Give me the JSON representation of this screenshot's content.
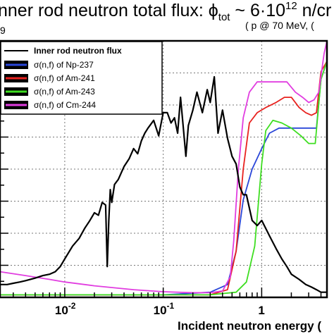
{
  "chart_data": {
    "type": "line",
    "title": "nner rod neutron total flux: ϕ",
    "title_sub": "tot",
    "title_tail": " ~ 6·10",
    "title_exp": "12",
    "title_unit": " n/cr",
    "subtitle": "( p @ 70 MeV, (",
    "y_exponent": "9",
    "xlabel": "Incident neutron energy (",
    "x_scale": "log",
    "xlim": [
      0.0022,
      4.6
    ],
    "ylim": [
      0,
      1
    ],
    "grid": true,
    "x_ticks": [
      {
        "value": 0.01,
        "label": "10",
        "exp": "-2"
      },
      {
        "value": 0.1,
        "label": "10",
        "exp": "-1"
      },
      {
        "value": 1,
        "label": "1",
        "exp": ""
      }
    ],
    "legend": {
      "placement": "top-left",
      "header": "Inner rod neutron flux",
      "entries": [
        {
          "label": "σ(n,f) of Np-237",
          "color": "#2a46d8"
        },
        {
          "label": "σ(n,f) of Am-241",
          "color": "#e8221f"
        },
        {
          "label": "σ(n,f) of Am-243",
          "color": "#3ede21"
        },
        {
          "label": "σ(n,f) of Cm-244",
          "color": "#e13de0"
        }
      ]
    },
    "series": [
      {
        "name": "Inner rod neutron flux",
        "color": "#000000",
        "x": [
          0.0022,
          0.0026,
          0.003,
          0.0035,
          0.004,
          0.005,
          0.006,
          0.007,
          0.008,
          0.009,
          0.01,
          0.012,
          0.014,
          0.016,
          0.018,
          0.02,
          0.022,
          0.024,
          0.026,
          0.027,
          0.028,
          0.029,
          0.03,
          0.032,
          0.035,
          0.04,
          0.045,
          0.05,
          0.055,
          0.06,
          0.065,
          0.07,
          0.08,
          0.09,
          0.1,
          0.11,
          0.12,
          0.13,
          0.14,
          0.15,
          0.16,
          0.17,
          0.18,
          0.2,
          0.22,
          0.25,
          0.28,
          0.3,
          0.33,
          0.36,
          0.4,
          0.45,
          0.5,
          0.55,
          0.6,
          0.65,
          0.7,
          0.8,
          0.9,
          1.0,
          1.2,
          1.4,
          1.6,
          1.8,
          2.0,
          2.4,
          2.8,
          3.2,
          3.6,
          4.0,
          4.6
        ],
        "y": [
          0.05,
          0.05,
          0.055,
          0.06,
          0.065,
          0.075,
          0.085,
          0.09,
          0.1,
          0.12,
          0.15,
          0.2,
          0.23,
          0.27,
          0.3,
          0.33,
          0.32,
          0.37,
          0.36,
          0.12,
          0.3,
          0.42,
          0.37,
          0.44,
          0.46,
          0.51,
          0.54,
          0.58,
          0.56,
          0.61,
          0.64,
          0.66,
          0.69,
          0.63,
          0.72,
          0.72,
          0.68,
          0.7,
          0.64,
          0.78,
          0.66,
          0.55,
          0.67,
          0.73,
          0.8,
          0.72,
          0.81,
          0.76,
          0.86,
          0.64,
          0.73,
          0.62,
          0.55,
          0.52,
          0.43,
          0.4,
          0.4,
          0.3,
          0.28,
          0.3,
          0.24,
          0.19,
          0.15,
          0.12,
          0.09,
          0.07,
          0.05,
          0.04,
          0.03,
          0.02,
          0.02
        ]
      },
      {
        "name": "σ(n,f) of Np-237",
        "color": "#2a46d8",
        "x": [
          0.0022,
          0.01,
          0.1,
          0.3,
          0.45,
          0.55,
          0.65,
          0.8,
          1.0,
          1.2,
          1.5,
          2.0,
          2.5,
          3.0,
          3.6,
          4.0,
          4.6
        ],
        "y": [
          0.01,
          0.01,
          0.01,
          0.02,
          0.05,
          0.18,
          0.38,
          0.5,
          0.58,
          0.64,
          0.66,
          0.66,
          0.66,
          0.66,
          0.66,
          0.85,
          0.92
        ]
      },
      {
        "name": "σ(n,f) of Am-241",
        "color": "#e8221f",
        "x": [
          0.0022,
          0.01,
          0.1,
          0.3,
          0.45,
          0.55,
          0.65,
          0.75,
          0.9,
          1.1,
          1.4,
          1.7,
          2.0,
          2.4,
          2.8,
          3.2,
          3.6,
          4.0,
          4.6
        ],
        "y": [
          0.01,
          0.01,
          0.01,
          0.01,
          0.03,
          0.18,
          0.5,
          0.68,
          0.72,
          0.74,
          0.76,
          0.78,
          0.78,
          0.74,
          0.72,
          0.71,
          0.72,
          0.88,
          0.92
        ]
      },
      {
        "name": "σ(n,f) of Am-243",
        "color": "#3ede21",
        "x": [
          0.0022,
          0.01,
          0.1,
          0.3,
          0.55,
          0.7,
          0.85,
          1.0,
          1.1,
          1.3,
          1.6,
          2.0,
          2.5,
          3.0,
          3.5,
          4.0,
          4.6
        ],
        "y": [
          0.01,
          0.01,
          0.01,
          0.01,
          0.02,
          0.06,
          0.2,
          0.52,
          0.65,
          0.69,
          0.68,
          0.66,
          0.63,
          0.6,
          0.6,
          0.85,
          0.92
        ]
      },
      {
        "name": "σ(n,f) of Cm-244",
        "color": "#e13de0",
        "x": [
          0.0022,
          0.004,
          0.007,
          0.01,
          0.02,
          0.05,
          0.1,
          0.2,
          0.3,
          0.4,
          0.48,
          0.52,
          0.58,
          0.65,
          0.75,
          0.9,
          1.1,
          1.4,
          1.8,
          2.2,
          2.6,
          3.0,
          3.4,
          3.8,
          4.3,
          4.6
        ],
        "y": [
          0.1,
          0.085,
          0.07,
          0.06,
          0.045,
          0.03,
          0.022,
          0.018,
          0.018,
          0.025,
          0.08,
          0.22,
          0.5,
          0.7,
          0.8,
          0.84,
          0.84,
          0.84,
          0.84,
          0.8,
          0.78,
          0.76,
          0.77,
          0.8,
          0.95,
          1.0
        ]
      }
    ]
  }
}
